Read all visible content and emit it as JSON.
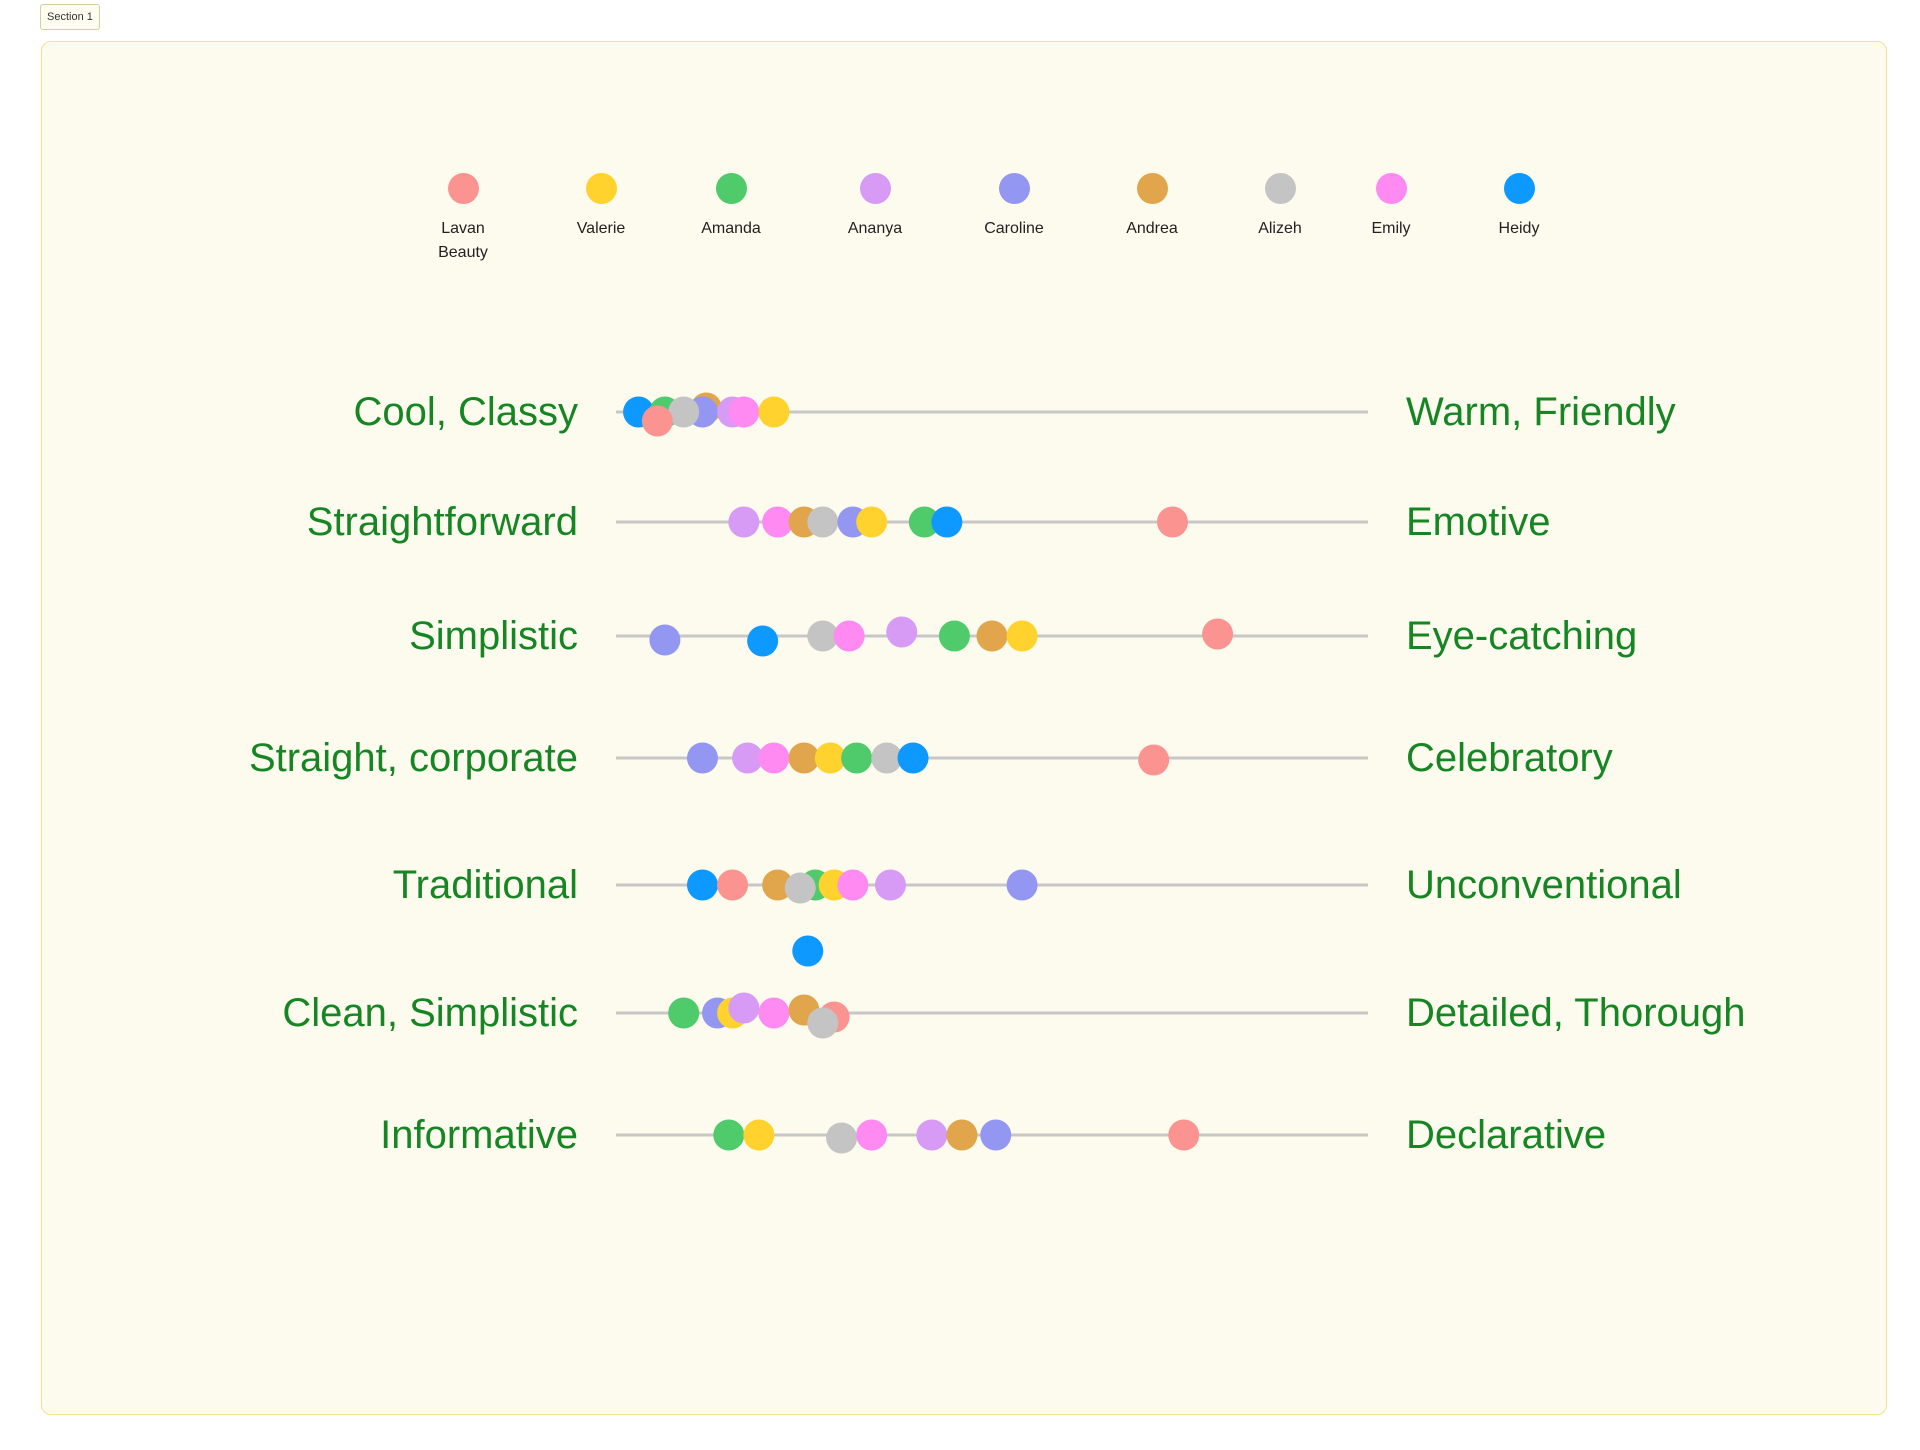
{
  "section": {
    "label": "Section 1"
  },
  "people": [
    {
      "name": "Lavan Beauty",
      "color": "#fb9490"
    },
    {
      "name": "Valerie",
      "color": "#ffd22e"
    },
    {
      "name": "Amanda",
      "color": "#4fcb6b"
    },
    {
      "name": "Ananya",
      "color": "#d79af5"
    },
    {
      "name": "Caroline",
      "color": "#9497f2"
    },
    {
      "name": "Andrea",
      "color": "#e1a54c"
    },
    {
      "name": "Alizeh",
      "color": "#c4c4c4"
    },
    {
      "name": "Emily",
      "color": "#ff8af1"
    },
    {
      "name": "Heidy",
      "color": "#0d99ff"
    }
  ],
  "colors": {
    "label_text": "#168523",
    "track": "#c7c7c7",
    "frame_bg": "#fdfbee",
    "frame_border": "#f3e38a"
  },
  "chart_data": {
    "type": "scatter",
    "x_range": [
      0,
      100
    ],
    "rows": [
      {
        "left": "Cool, Classy",
        "right": "Warm, Friendly",
        "values": {
          "Heidy": 3,
          "Amanda": 6.5,
          "Andrea": 12,
          "Caroline": 11.5,
          "Alizeh": 9,
          "Ananya": 15.5,
          "Emily": 17,
          "Valerie": 21,
          "Lavan Beauty": 5.5
        }
      },
      {
        "left": "Straightforward",
        "right": "Emotive",
        "values": {
          "Ananya": 17,
          "Emily": 21.5,
          "Andrea": 25,
          "Alizeh": 27.5,
          "Caroline": 31.5,
          "Valerie": 34,
          "Amanda": 41,
          "Heidy": 44,
          "Lavan Beauty": 74
        }
      },
      {
        "left": "Simplistic",
        "right": "Eye-catching",
        "values": {
          "Caroline": 6.5,
          "Heidy": 19.5,
          "Alizeh": 27.5,
          "Emily": 31,
          "Ananya": 38,
          "Amanda": 45,
          "Andrea": 50,
          "Valerie": 54,
          "Lavan Beauty": 80
        }
      },
      {
        "left": "Straight, corporate",
        "right": "Celebratory",
        "values": {
          "Caroline": 11.5,
          "Ananya": 17.5,
          "Emily": 21,
          "Andrea": 25,
          "Valerie": 28.5,
          "Amanda": 32,
          "Alizeh": 36,
          "Heidy": 39.5,
          "Lavan Beauty": 71.5
        }
      },
      {
        "left": "Traditional",
        "right": "Unconventional",
        "values": {
          "Heidy": 11.5,
          "Lavan Beauty": 15.5,
          "Andrea": 21.5,
          "Amanda": 26.5,
          "Alizeh": 24.5,
          "Valerie": 29,
          "Emily": 31.5,
          "Ananya": 36.5,
          "Caroline": 54
        }
      },
      {
        "left": "Clean, Simplistic",
        "right": "Detailed, Thorough",
        "values": {
          "Amanda": 9,
          "Caroline": 13.5,
          "Valerie": 15.5,
          "Ananya": 17,
          "Emily": 21,
          "Andrea": 25,
          "Lavan Beauty": 29,
          "Alizeh": 27.5,
          "Heidy": 25.5
        }
      },
      {
        "left": "Informative",
        "right": "Declarative",
        "values": {
          "Amanda": 15,
          "Valerie": 19,
          "Alizeh": 30,
          "Emily": 34,
          "Ananya": 42,
          "Andrea": 46,
          "Caroline": 50.5,
          "Lavan Beauty": 75.5
        }
      }
    ]
  }
}
